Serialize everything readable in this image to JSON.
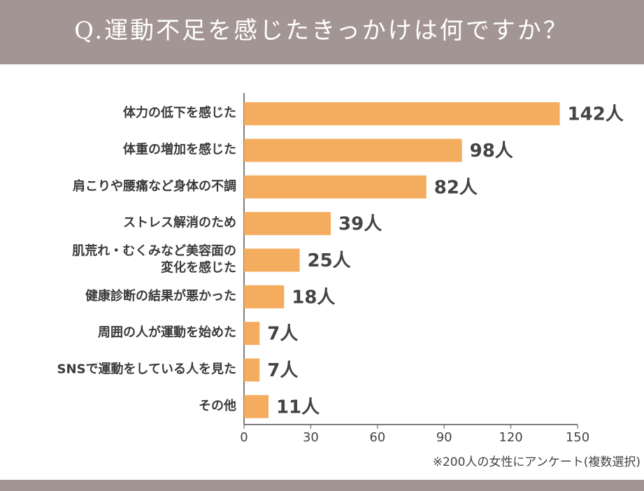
{
  "chart_data": {
    "type": "bar",
    "orientation": "horizontal",
    "title": "Q.運動不足を感じたきっかけは何ですか？",
    "categories": [
      "体力の低下を感じた",
      "体重の増加を感じた",
      "肩こりや腰痛など身体の不調",
      "ストレス解消のため",
      "肌荒れ・むくみなど美容面の\n変化を感じた",
      "健康診断の結果が悪かった",
      "周囲の人が運動を始めた",
      "SNSで運動をしている人を見た",
      "その他"
    ],
    "values": [
      142,
      98,
      82,
      39,
      25,
      18,
      7,
      7,
      11
    ],
    "value_labels": [
      "142人",
      "98人",
      "82人",
      "39人",
      "25人",
      "18人",
      "7人",
      "7人",
      "11人"
    ],
    "color": "#f4ad5f",
    "xlim": [
      0,
      150
    ],
    "xticks": [
      0,
      30,
      60,
      90,
      120,
      150
    ],
    "note": "※200人の女性にアンケート(複数選択)"
  }
}
